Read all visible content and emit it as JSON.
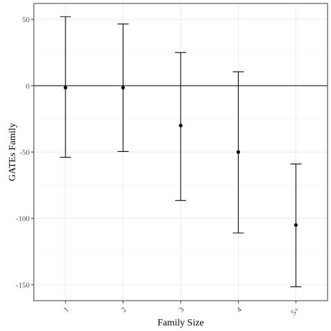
{
  "chart_data": {
    "type": "scatter",
    "title": "",
    "xlabel": "Family Size",
    "ylabel": "GATEs Family",
    "categories": [
      "1",
      "2",
      "3",
      "4",
      "5+"
    ],
    "series": [
      {
        "estimate": [
          -1.5,
          -1.5,
          -30,
          -50,
          -105
        ],
        "lower": [
          -54,
          -49.5,
          -86.5,
          -111,
          -151.5
        ],
        "upper": [
          52,
          46.5,
          25,
          10.5,
          -59
        ]
      }
    ],
    "ylim": [
      -162,
      62
    ],
    "yticks": [
      50,
      0,
      -50,
      -100,
      -150
    ],
    "ytick_labels": [
      "50",
      "0",
      "-50",
      "-100",
      "-150"
    ],
    "reference_line_y": 0,
    "grid": true,
    "legend": "none"
  }
}
